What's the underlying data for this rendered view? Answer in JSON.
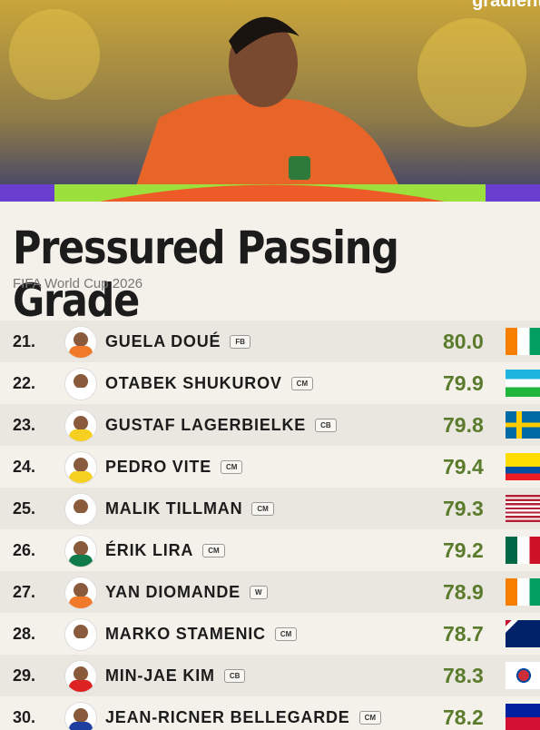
{
  "brand": "gradient",
  "header": {
    "title": "Pressured Passing Grade",
    "subtitle": "FIFA World Cup 2026"
  },
  "table": {
    "rows": [
      [
        "21.",
        "GUELA DOUÉ",
        "FB",
        "80.0"
      ],
      [
        "22.",
        "OTABEK SHUKUROV",
        "CM",
        "79.9"
      ],
      [
        "23.",
        "GUSTAF LAGERBIELKE",
        "CB",
        "79.8"
      ],
      [
        "24.",
        "PEDRO VITE",
        "CM",
        "79.4"
      ],
      [
        "25.",
        "MALIK TILLMAN",
        "CM",
        "79.3"
      ],
      [
        "26.",
        "ÉRIK LIRA",
        "CM",
        "79.2"
      ],
      [
        "27.",
        "YAN DIOMANDE",
        "W",
        "78.9"
      ],
      [
        "28.",
        "MARKO STAMENIC",
        "CM",
        "78.7"
      ],
      [
        "29.",
        "MIN-JAE KIM",
        "CB",
        "78.3"
      ],
      [
        "30.",
        "JEAN-RICNER BELLEGARDE",
        "CM",
        "78.2"
      ]
    ]
  }
}
